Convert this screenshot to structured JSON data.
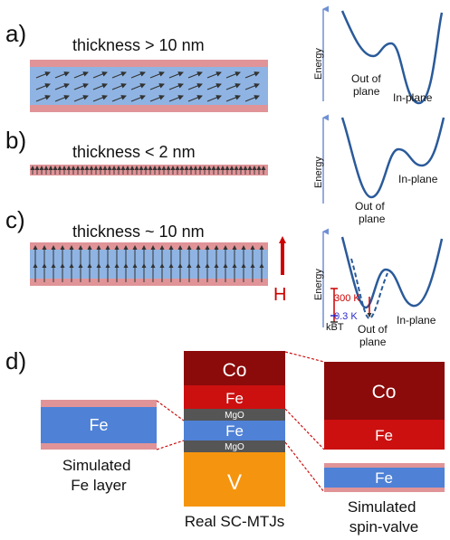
{
  "panels": {
    "a": {
      "letter": "a)",
      "caption": "thickness > 10 nm",
      "energy_axis_label": "Energy",
      "min_left_label": [
        "Out of",
        "plane"
      ],
      "min_right_label": "In-plane"
    },
    "b": {
      "letter": "b)",
      "caption": "thickness < 2 nm",
      "energy_axis_label": "Energy",
      "min_left_label": [
        "Out of",
        "plane"
      ],
      "min_right_label": "In-plane"
    },
    "c": {
      "letter": "c)",
      "caption": "thickness ~ 10 nm",
      "field_label": "H",
      "energy_axis_label": "Energy",
      "temp_high": "300 K",
      "temp_low": "0.3 K",
      "kbt_label": "kBT",
      "min_left_label": [
        "Out of",
        "plane"
      ],
      "min_right_label": "In-plane"
    },
    "d": {
      "letter": "d)",
      "left_layer": "Fe",
      "left_caption": [
        "Simulated",
        "Fe layer"
      ],
      "stack": [
        "Co",
        "Fe",
        "MgO",
        "Fe",
        "MgO",
        "V"
      ],
      "stack_caption": "Real SC-MTJs",
      "right_top": [
        "Co",
        "Fe"
      ],
      "right_bottom": "Fe",
      "right_caption": [
        "Simulated",
        "spin-valve"
      ]
    }
  },
  "colors": {
    "pink_cap": "#e09498",
    "blue_layer": "#8fb4e3",
    "fe_blue": "#4f81d6",
    "co": "#8b0a0a",
    "fe_red": "#cc1010",
    "mgo": "#555555",
    "v": "#f5950f",
    "curve": "#2a5a9a",
    "axis": "#6f8fd6",
    "field_arrow": "#cc0000",
    "temp_high": "#cc0000",
    "temp_low": "#2a2acc"
  }
}
